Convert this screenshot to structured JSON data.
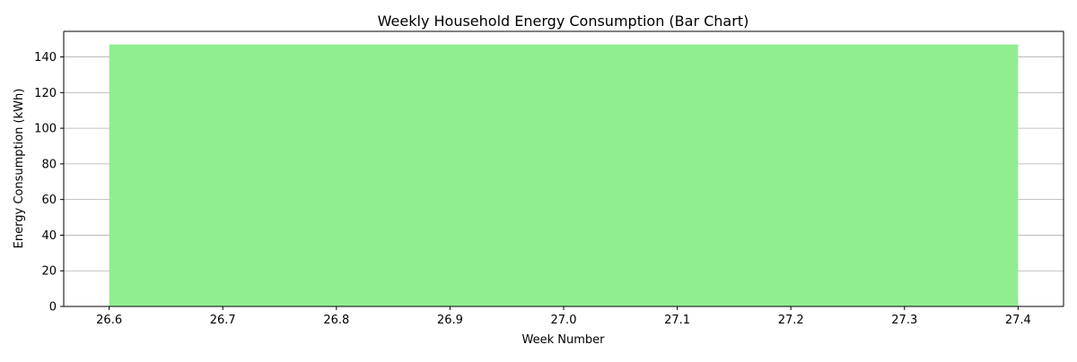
{
  "chart_data": {
    "type": "bar",
    "title": "Weekly Household Energy Consumption (Bar Chart)",
    "xlabel": "Week Number",
    "ylabel": "Energy Consumption (kWh)",
    "x": [
      27
    ],
    "values": [
      147
    ],
    "bar_width": 0.8,
    "xlim": [
      26.56,
      27.44
    ],
    "ylim": [
      0,
      154.35
    ],
    "x_ticks": [
      "26.6",
      "26.7",
      "26.8",
      "26.9",
      "27.0",
      "27.1",
      "27.2",
      "27.3",
      "27.4"
    ],
    "y_ticks": [
      "0",
      "20",
      "40",
      "60",
      "80",
      "100",
      "120",
      "140"
    ],
    "grid": "y-axis only",
    "legend": "none",
    "colors": {
      "bar": "#90ee90",
      "grid": "#b0b0b0",
      "axis": "#000000"
    }
  }
}
